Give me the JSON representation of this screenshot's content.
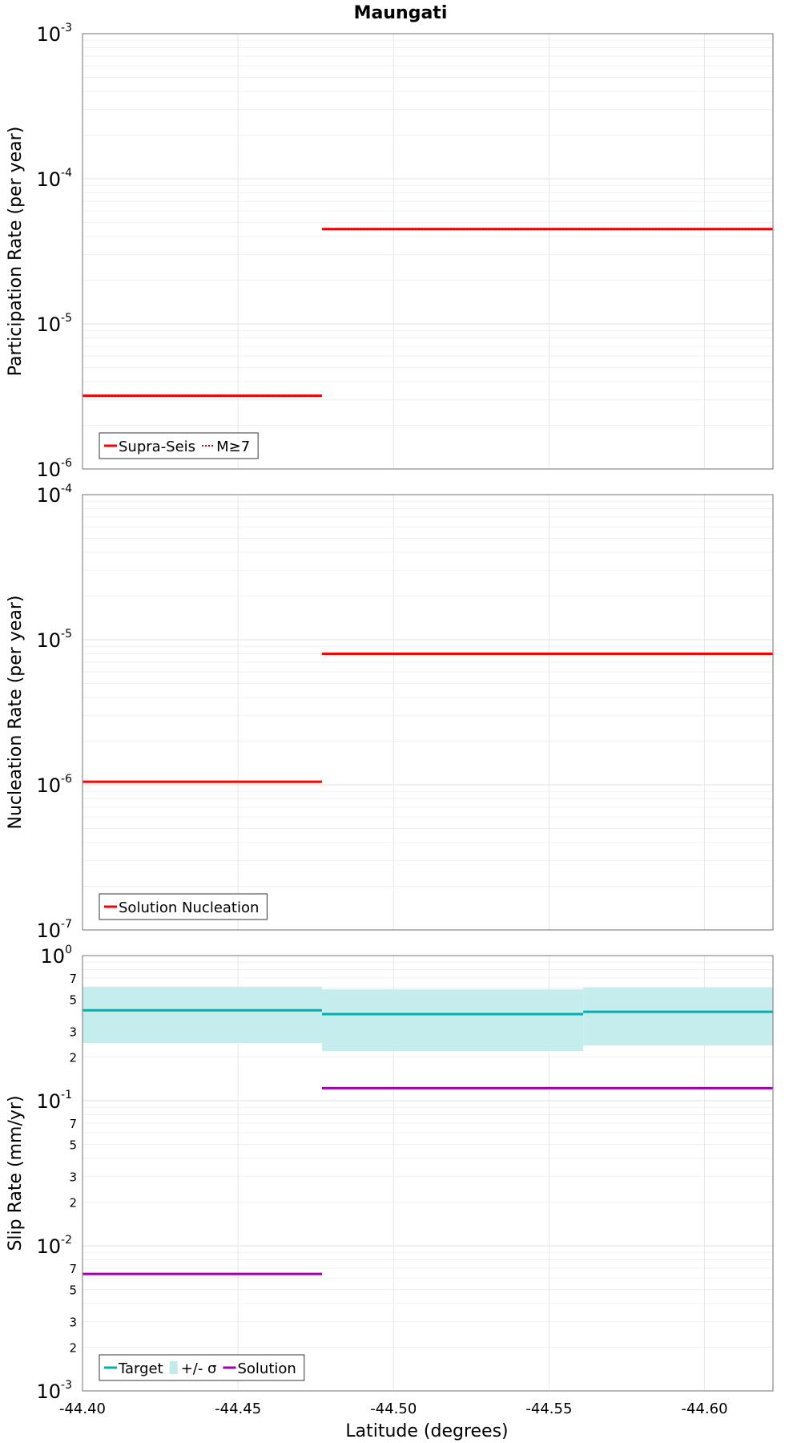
{
  "chart_data": [
    {
      "type": "line",
      "title": "Maungati",
      "ylabel": "Participation Rate (per year)",
      "yscale": "log",
      "ylim": [
        1e-06,
        0.001
      ],
      "ytick_exponents": [
        "-6",
        "-5",
        "-4",
        "-3"
      ],
      "grid": true,
      "legend_placement": "bottom-left",
      "series": [
        {
          "name": "Supra-Seis",
          "color": "#ff0000",
          "style": "solid",
          "steps": [
            {
              "x0": -44.4,
              "x1": -44.477,
              "y": 3.2e-06
            },
            {
              "x0": -44.477,
              "x1": -44.622,
              "y": 4.5e-05
            }
          ]
        },
        {
          "name": "M≥7",
          "color": "#ff0000",
          "style": "dotted",
          "steps": [
            {
              "x0": -44.4,
              "x1": -44.477,
              "y": 3.2e-06
            },
            {
              "x0": -44.477,
              "x1": -44.622,
              "y": 4.5e-05
            }
          ]
        }
      ]
    },
    {
      "type": "line",
      "ylabel": "Nucleation Rate (per year)",
      "yscale": "log",
      "ylim": [
        1e-07,
        0.0001
      ],
      "ytick_exponents": [
        "-7",
        "-6",
        "-5",
        "-4"
      ],
      "grid": true,
      "legend_placement": "bottom-left",
      "series": [
        {
          "name": "Solution Nucleation",
          "color": "#ff0000",
          "style": "solid",
          "steps": [
            {
              "x0": -44.4,
              "x1": -44.477,
              "y": 1.05e-06
            },
            {
              "x0": -44.477,
              "x1": -44.622,
              "y": 8e-06
            }
          ]
        }
      ]
    },
    {
      "type": "line",
      "ylabel": "Slip Rate (mm/yr)",
      "xlabel": "Latitude (degrees)",
      "yscale": "log",
      "ylim": [
        0.001,
        1
      ],
      "ytick_exponents": [
        "-3",
        "-2",
        "-1",
        "0"
      ],
      "minor_tick_labels": [
        "2",
        "3",
        "5",
        "7"
      ],
      "xlim": [
        -44.4,
        -44.622
      ],
      "xticks": [
        -44.4,
        -44.45,
        -44.5,
        -44.55,
        -44.6
      ],
      "xtick_labels": [
        "-44.40",
        "-44.45",
        "-44.50",
        "-44.55",
        "-44.60"
      ],
      "grid": true,
      "legend_placement": "bottom-left",
      "series": [
        {
          "name": "Target",
          "color": "#00b0b0",
          "style": "solid",
          "steps": [
            {
              "x0": -44.4,
              "x1": -44.477,
              "y": 0.42
            },
            {
              "x0": -44.477,
              "x1": -44.561,
              "y": 0.395
            },
            {
              "x0": -44.561,
              "x1": -44.622,
              "y": 0.41
            }
          ]
        },
        {
          "name": "+/- σ",
          "color": "#c2ecec",
          "style": "band",
          "steps": [
            {
              "x0": -44.4,
              "x1": -44.477,
              "lo": 0.25,
              "hi": 0.61
            },
            {
              "x0": -44.477,
              "x1": -44.561,
              "lo": 0.22,
              "hi": 0.585
            },
            {
              "x0": -44.561,
              "x1": -44.622,
              "lo": 0.24,
              "hi": 0.605
            }
          ]
        },
        {
          "name": "Solution",
          "color": "#a000b0",
          "style": "solid",
          "steps": [
            {
              "x0": -44.4,
              "x1": -44.477,
              "y": 0.0064
            },
            {
              "x0": -44.477,
              "x1": -44.622,
              "y": 0.122
            }
          ]
        }
      ]
    }
  ]
}
